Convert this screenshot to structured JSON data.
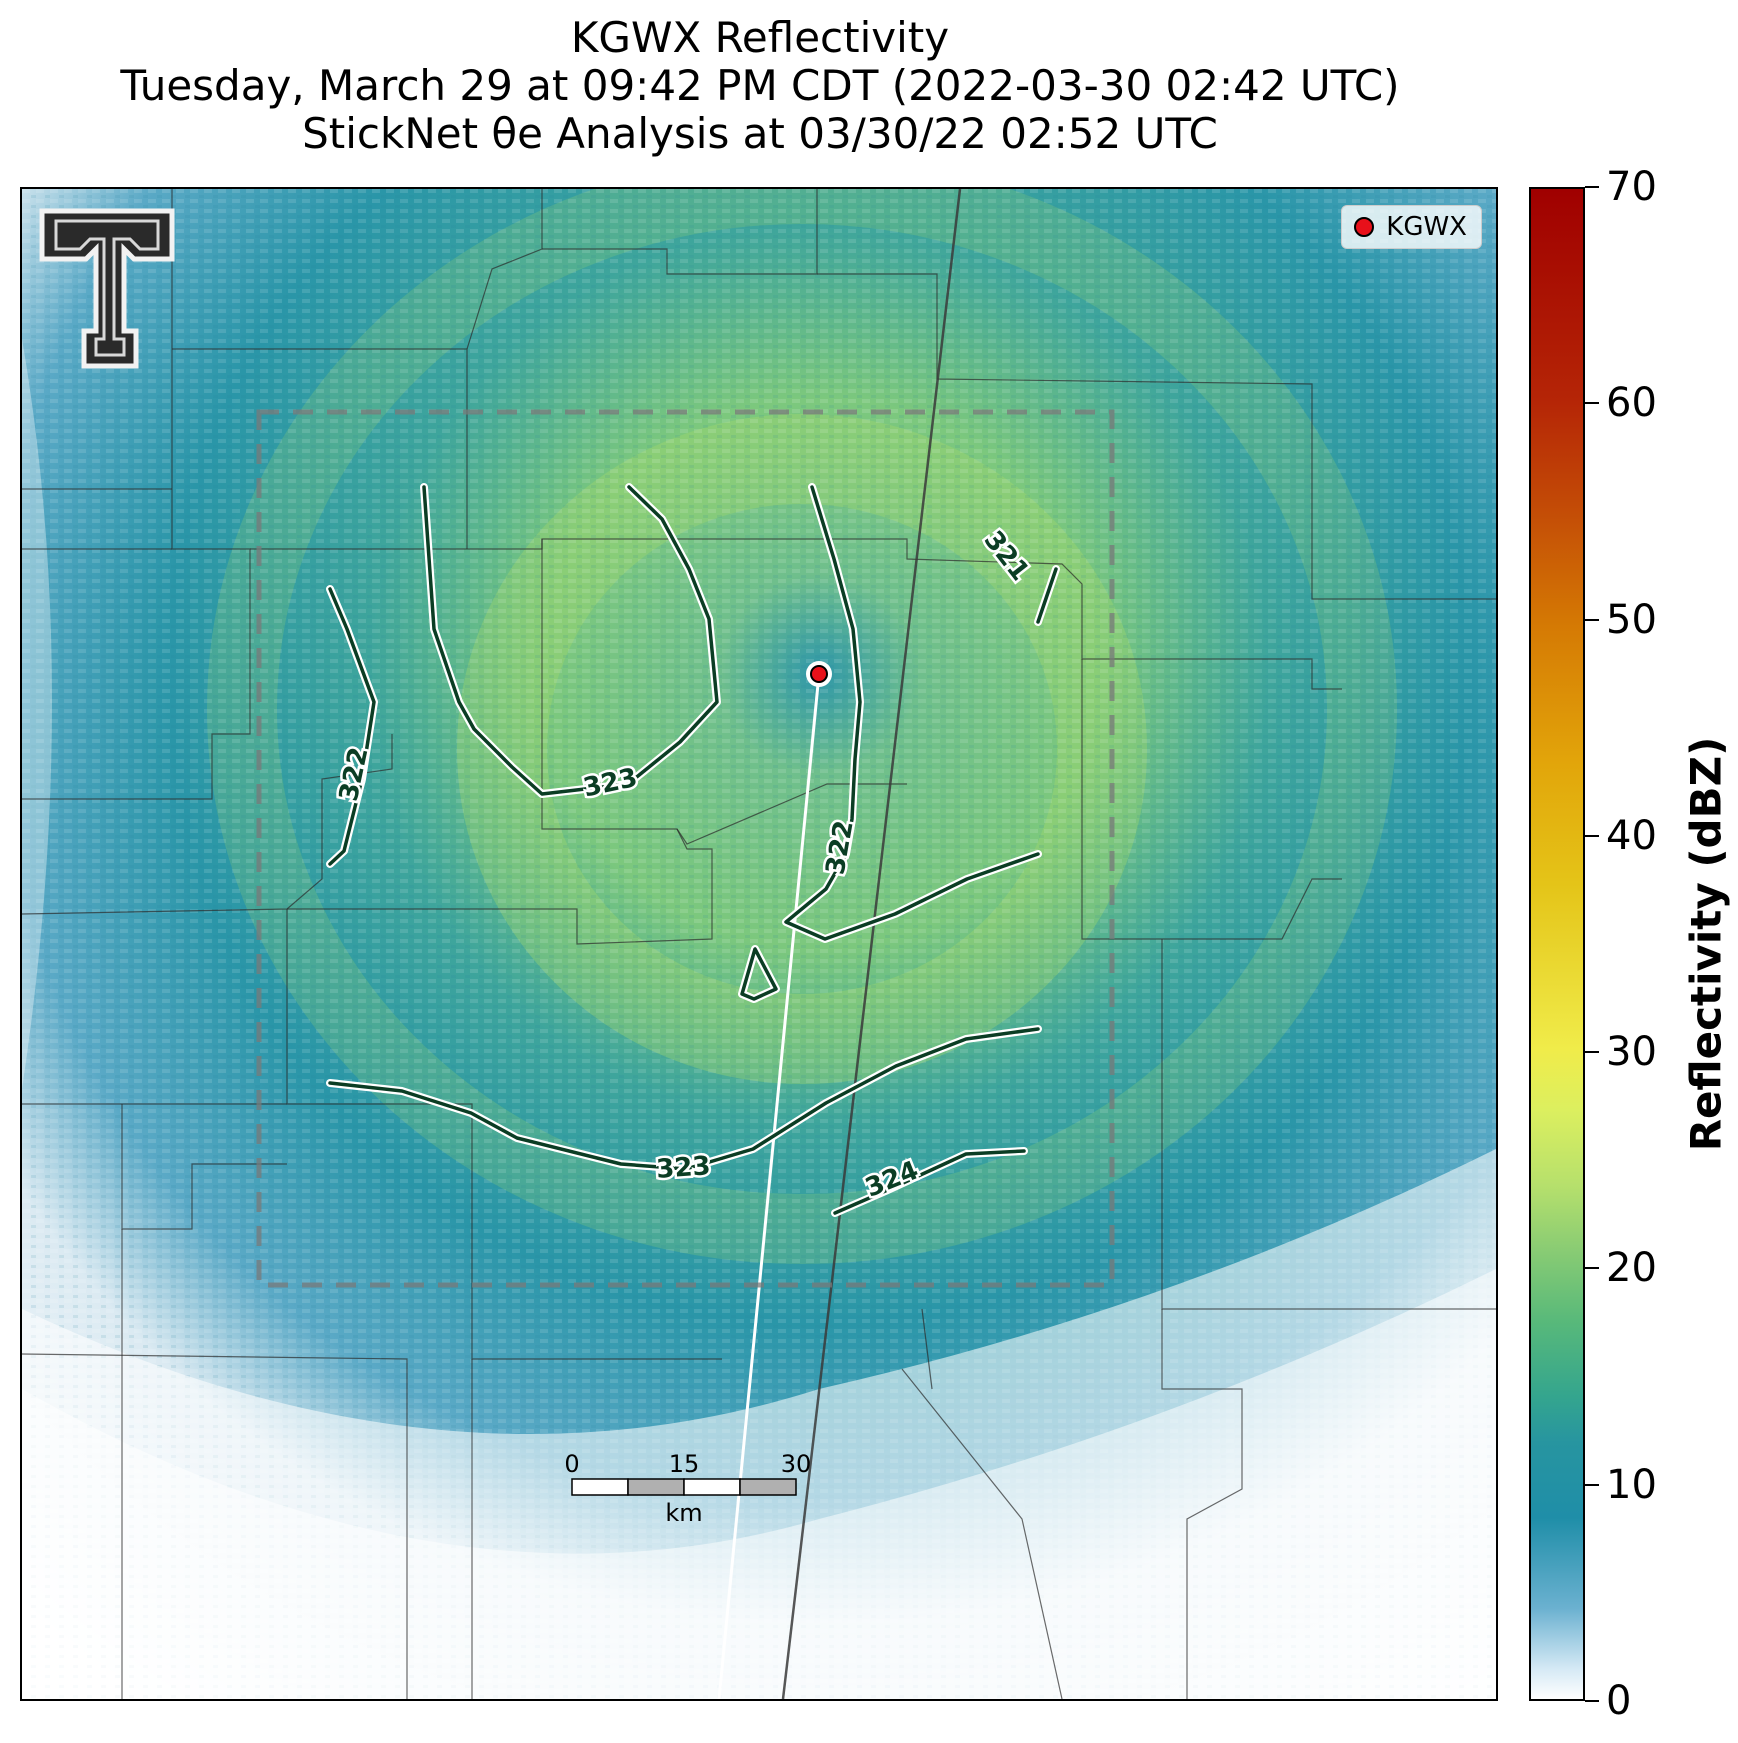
{
  "title": {
    "line1": "KGWX Reflectivity",
    "line2": "Tuesday, March 29 at 09:42 PM CDT (2022-03-30 02:42 UTC)",
    "line3": "StickNet θe Analysis at 03/30/22 02:52 UTC"
  },
  "legend": {
    "label": "KGWX",
    "marker_color": "#e8101a"
  },
  "colorbar": {
    "title": "Reflectivity (dBZ)",
    "ticks": [
      "0",
      "10",
      "20",
      "30",
      "40",
      "50",
      "60",
      "70"
    ],
    "min": 0,
    "max": 70
  },
  "contours": {
    "labels": [
      "322",
      "323",
      "322",
      "321",
      "323",
      "324"
    ],
    "line_color": "#0b3d24"
  },
  "scale_bar": {
    "ticks": [
      "0",
      "15",
      "30"
    ],
    "unit": "km"
  },
  "radar_site": "KGWX"
}
